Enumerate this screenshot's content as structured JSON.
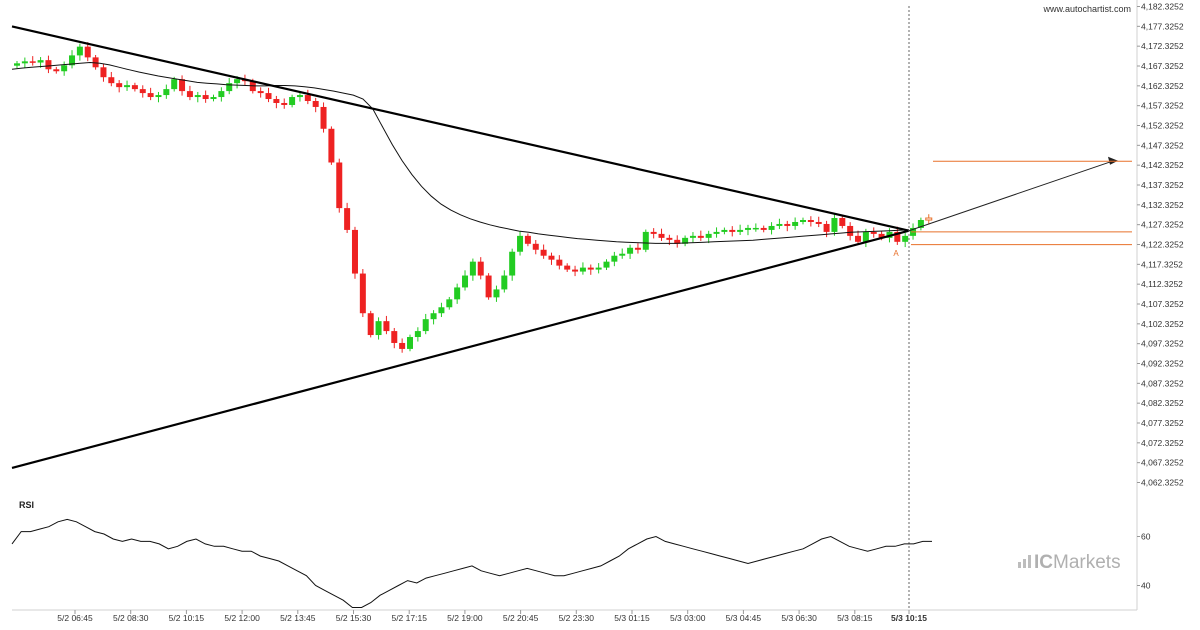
{
  "source_label": "www.autochartist.com",
  "brand": {
    "prefix": "IC",
    "suffix": "Markets"
  },
  "rsi_label": "RSI",
  "pattern_marker": "A",
  "colors": {
    "bullish": "#22cc22",
    "bearish": "#ee2222",
    "trend_line": "#000000",
    "moving_average": "#111111",
    "forecast_line": "#e8702a",
    "axis_text": "#333333",
    "watermark": "#b0b0b0"
  },
  "chart_data": {
    "type": "candlestick",
    "price_axis": {
      "ticks": [
        "4,182.3252",
        "4,177.3252",
        "4,172.3252",
        "4,167.3252",
        "4,162.3252",
        "4,157.3252",
        "4,152.3252",
        "4,147.3252",
        "4,142.3252",
        "4,137.3252",
        "4,132.3252",
        "4,127.3252",
        "4,122.3252",
        "4,117.3252",
        "4,112.3252",
        "4,107.3252",
        "4,102.3252",
        "4,097.3252",
        "4,092.3252",
        "4,087.3252",
        "4,082.3252",
        "4,077.3252",
        "4,072.3252",
        "4,067.3252",
        "4,062.3252"
      ],
      "range": [
        4061,
        4183
      ]
    },
    "time_axis": {
      "ticks": [
        "5/2 06:45",
        "5/2 08:30",
        "5/2 10:15",
        "5/2 12:00",
        "5/2 13:45",
        "5/2 15:30",
        "5/2 17:15",
        "5/2 19:00",
        "5/2 20:45",
        "5/2 23:30",
        "5/3 01:15",
        "5/3 03:00",
        "5/3 04:45",
        "5/3 06:30",
        "5/3 08:15",
        "5/3 10:15"
      ],
      "highlighted_tick": "5/3 10:15"
    },
    "rsi_axis": {
      "ticks": [
        "60",
        "40"
      ],
      "range": [
        30,
        70
      ]
    },
    "closes": [
      4168.0,
      4168.5,
      4168.2,
      4168.8,
      4166.5,
      4166.0,
      4167.5,
      4170.0,
      4172.2,
      4169.5,
      4167.0,
      4164.5,
      4163.0,
      4162.0,
      4162.5,
      4161.5,
      4160.5,
      4159.5,
      4160.0,
      4161.5,
      4164.0,
      4161.0,
      4159.5,
      4160.0,
      4159.0,
      4159.5,
      4161.0,
      4163.0,
      4164.0,
      4163.5,
      4161.0,
      4160.5,
      4159.0,
      4158.0,
      4157.5,
      4159.5,
      4160.0,
      4158.5,
      4157.0,
      4151.5,
      4143.0,
      4131.5,
      4126.0,
      4115.0,
      4105.0,
      4099.5,
      4103.0,
      4100.5,
      4097.5,
      4096.0,
      4099.0,
      4100.5,
      4103.5,
      4105.0,
      4106.5,
      4108.5,
      4111.5,
      4114.5,
      4118.0,
      4114.5,
      4109.0,
      4111.0,
      4114.5,
      4120.5,
      4124.5,
      4122.5,
      4121.0,
      4119.5,
      4118.5,
      4117.0,
      4116.0,
      4115.5,
      4116.5,
      4116.0,
      4116.5,
      4118.0,
      4119.5,
      4120.0,
      4121.5,
      4121.0,
      4125.5,
      4125.0,
      4124.0,
      4123.5,
      4122.5,
      4124.0,
      4124.5,
      4124.0,
      4125.0,
      4125.5,
      4126.0,
      4125.5,
      4126.0,
      4126.5,
      4126.5,
      4126.0,
      4127.0,
      4127.5,
      4127.0,
      4128.0,
      4128.5,
      4128.0,
      4127.5,
      4125.5,
      4129.0,
      4127.0,
      4124.5,
      4123.0,
      4125.5,
      4125.0,
      4124.0,
      4125.5,
      4123.0,
      4124.5,
      4126.5,
      4128.5,
      4129.0
    ],
    "moving_average": [
      4166.5,
      4166.8,
      4167.0,
      4167.2,
      4167.4,
      4167.6,
      4167.8,
      4168.0,
      4168.2,
      4168.0,
      4167.6,
      4167.0,
      4166.4,
      4165.8,
      4165.3,
      4164.8,
      4164.4,
      4164.0,
      4163.6,
      4163.2,
      4163.0,
      4162.8,
      4162.6,
      4162.5,
      4162.4,
      4162.3,
      4162.3,
      4162.4,
      4162.4,
      4162.3,
      4162.1,
      4161.8,
      4161.4,
      4161.0,
      4160.5,
      4160.0,
      4159.0,
      4156.5,
      4152.0,
      4147.5,
      4143.5,
      4140.0,
      4137.0,
      4134.5,
      4132.5,
      4131.0,
      4129.8,
      4128.8,
      4128.0,
      4127.3,
      4126.7,
      4126.2,
      4125.7,
      4125.4,
      4125.0,
      4124.7,
      4124.4,
      4124.1,
      4123.8,
      4123.6,
      4123.4,
      4123.2,
      4123.0,
      4122.9,
      4122.8,
      4122.7,
      4122.6,
      4122.6,
      4122.6,
      4122.7,
      4122.8,
      4122.9,
      4123.0,
      4123.1,
      4123.2,
      4123.3,
      4123.4,
      4123.6,
      4123.8,
      4124.0,
      4124.2,
      4124.4,
      4124.6,
      4124.8,
      4125.0,
      4125.2,
      4125.4,
      4125.5,
      4125.6,
      4125.7,
      4125.8,
      4125.9,
      4126.0
    ],
    "rsi": [
      57,
      62,
      62,
      63,
      64,
      66,
      67,
      66,
      64,
      62,
      61,
      59,
      58,
      59,
      58,
      58,
      57,
      55,
      56,
      58,
      59,
      57,
      56,
      56,
      55,
      54,
      54,
      52,
      51,
      50,
      48,
      46,
      44,
      40,
      38,
      36,
      34,
      31,
      31,
      33,
      36,
      38,
      40,
      42,
      41,
      43,
      44,
      45,
      46,
      47,
      48,
      46,
      45,
      44,
      45,
      46,
      47,
      46,
      45,
      44,
      44,
      45,
      46,
      47,
      48,
      50,
      52,
      55,
      57,
      59,
      60,
      58,
      57,
      56,
      55,
      54,
      53,
      52,
      51,
      50,
      49,
      50,
      51,
      52,
      53,
      54,
      55,
      57,
      59,
      60,
      58,
      56,
      55,
      54,
      55,
      56,
      56,
      57,
      57,
      58,
      58
    ],
    "trendlines": [
      {
        "role": "resistance",
        "from": [
          "left edge",
          4177.3
        ],
        "to": [
          "5/3 10:15",
          4125.8
        ]
      },
      {
        "role": "support",
        "from": [
          "left edge",
          4066.0
        ],
        "to": [
          "5/3 10:15",
          4125.8
        ]
      }
    ],
    "forecast": {
      "target_price": 4143.3,
      "level_upper": 4125.5,
      "level_lower": 4122.3
    }
  }
}
